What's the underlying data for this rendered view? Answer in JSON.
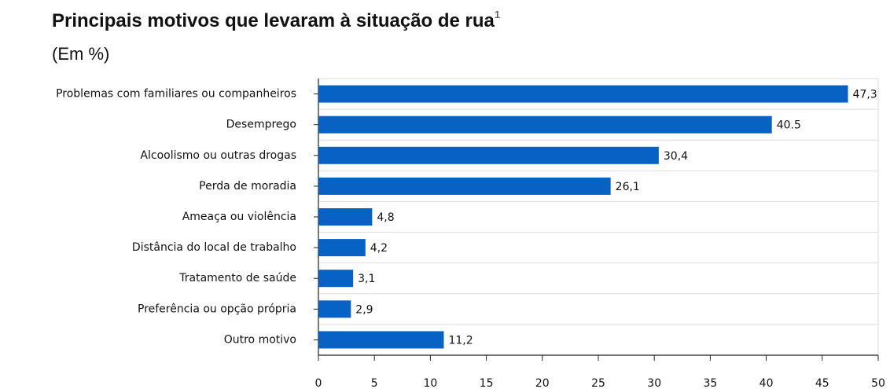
{
  "chart_data": {
    "type": "bar",
    "orientation": "horizontal",
    "title": "Principais motivos que levaram à situação de rua",
    "title_superscript": "1",
    "subtitle": "(Em %)",
    "categories": [
      "Problemas com familiares ou companheiros",
      "Desemprego",
      "Alcoolismo ou outras drogas",
      "Perda de moradia",
      "Ameaça ou violência",
      "Distância do local de trabalho",
      "Tratamento de saúde",
      "Preferência ou opção própria",
      "Outro motivo"
    ],
    "values": [
      47.3,
      40.5,
      30.4,
      26.1,
      4.8,
      4.2,
      3.1,
      2.9,
      11.2
    ],
    "value_labels": [
      "47,3",
      "40.5",
      "30,4",
      "26,1",
      "4,8",
      "4,2",
      "3,1",
      "2,9",
      "11,2"
    ],
    "color": "#0862c4",
    "xlim": [
      0,
      50
    ],
    "xticks": [
      0,
      5,
      10,
      15,
      20,
      25,
      30,
      35,
      40,
      45,
      50
    ]
  }
}
